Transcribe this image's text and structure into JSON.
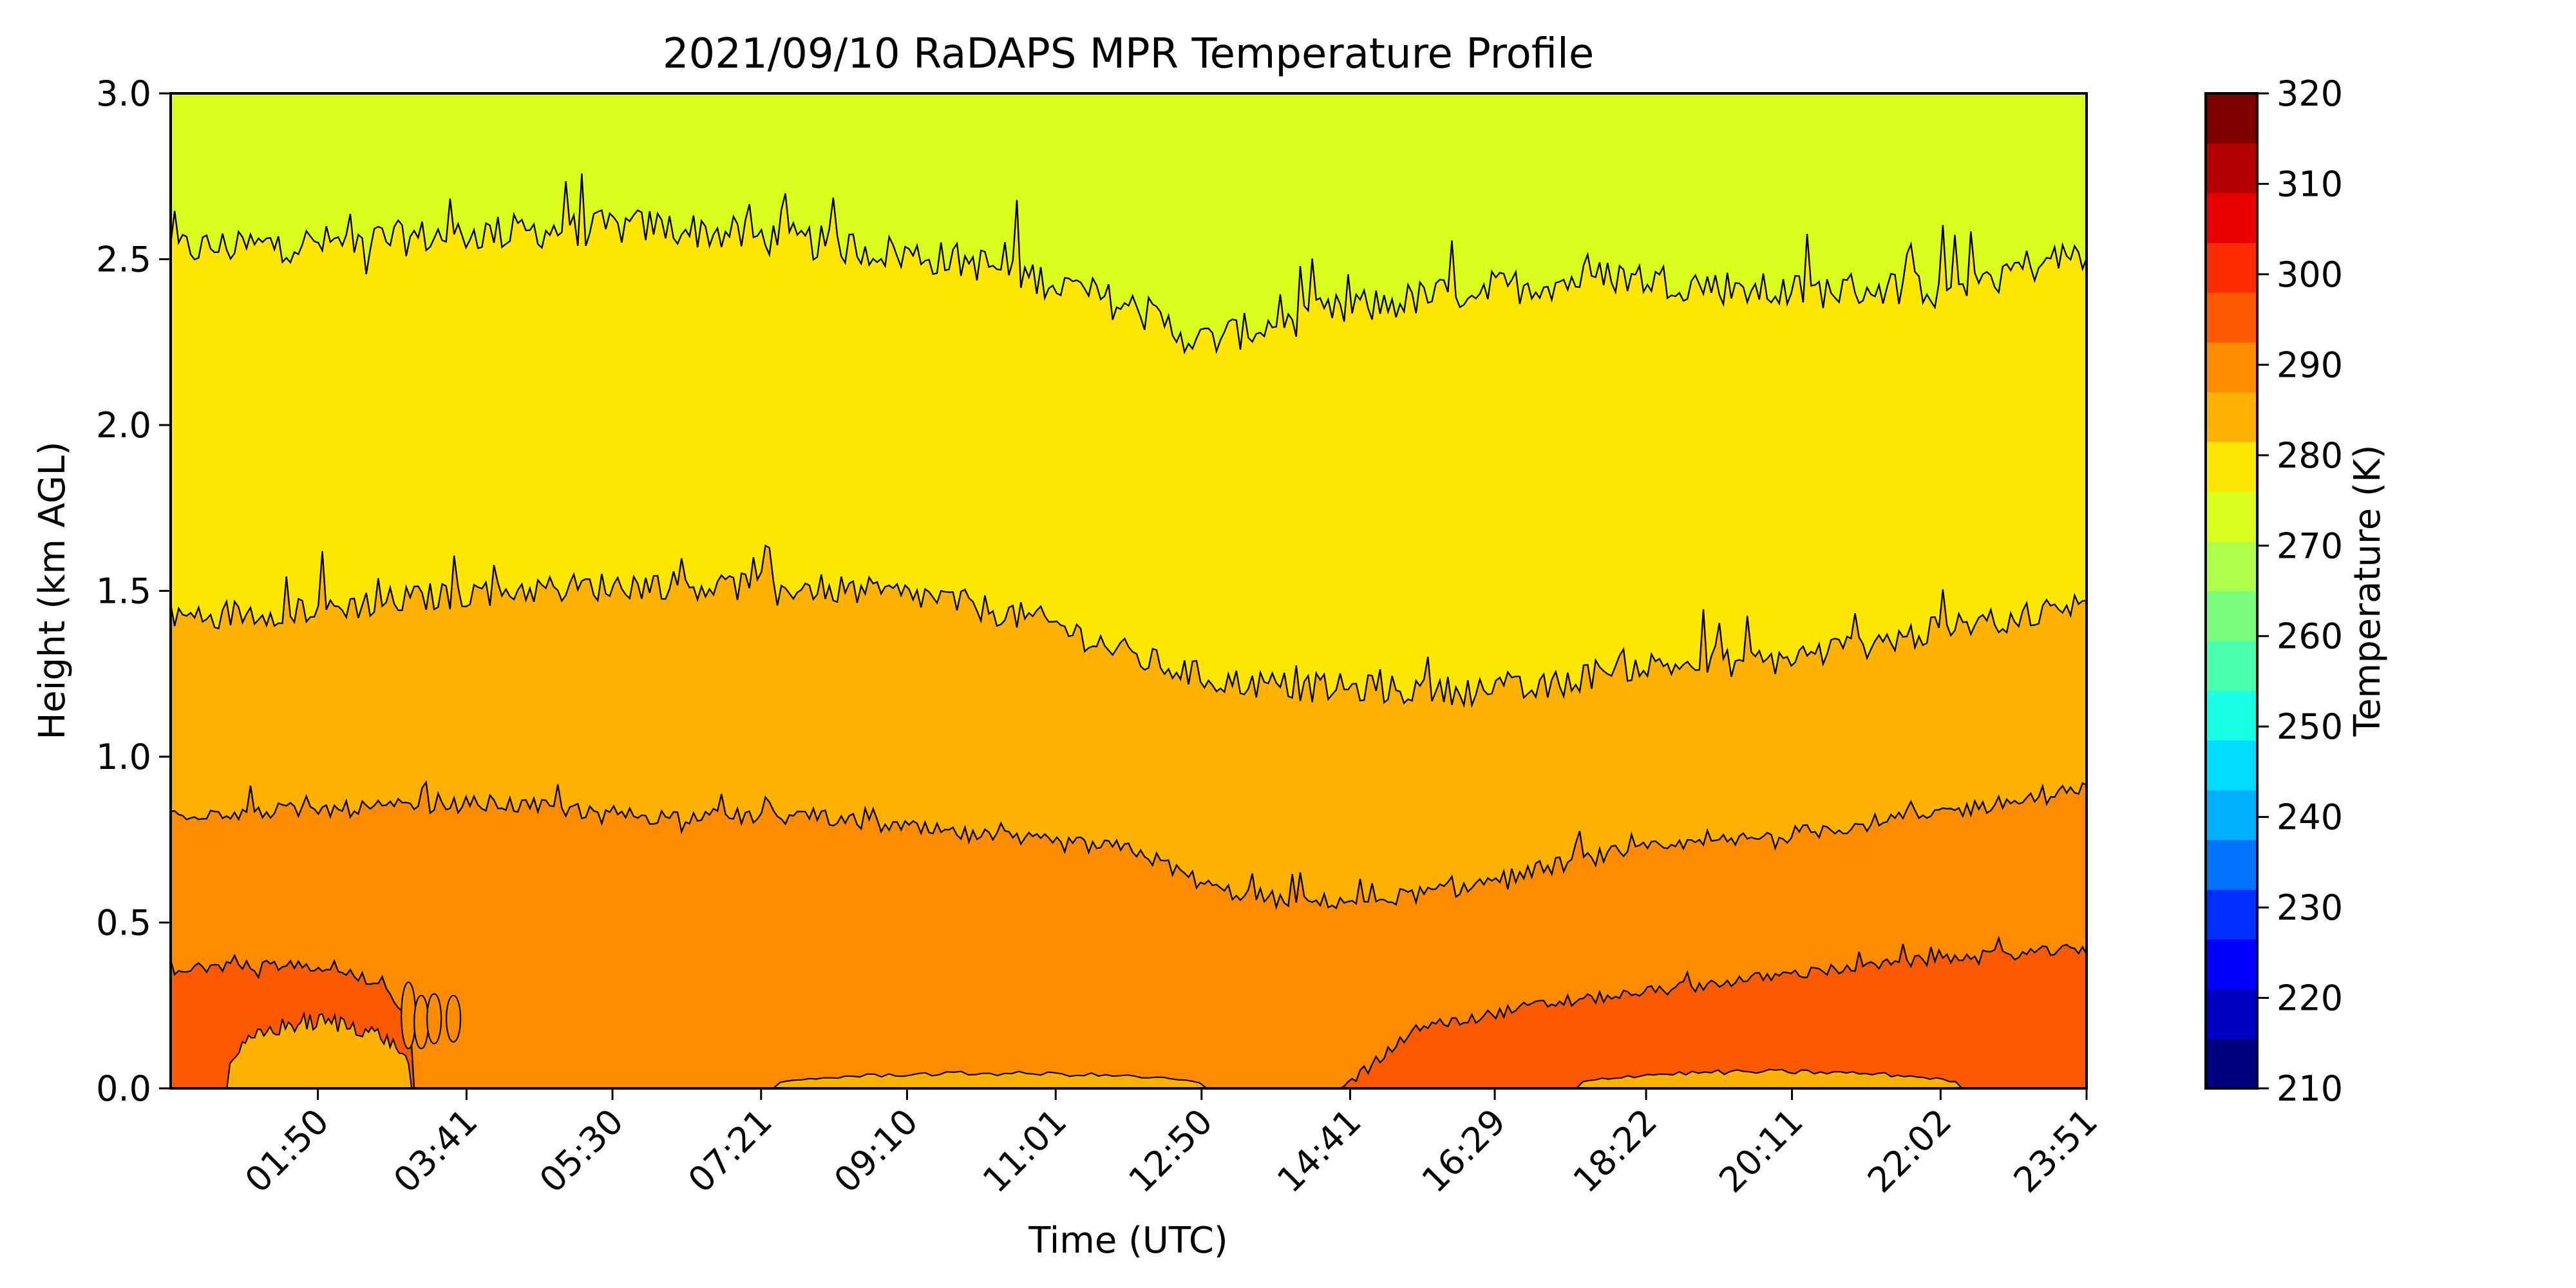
{
  "chart_data": {
    "type": "heatmap",
    "subtype": "filled-contour",
    "title": "2021/09/10 RaDAPS MPR Temperature Profile",
    "xlabel": "Time (UTC)",
    "ylabel": "Height (km AGL)",
    "colorbar_label": "Temperature (K)",
    "x_range_hours": [
      0.0,
      23.85
    ],
    "x_ticks": [
      {
        "hour": 1.833,
        "label": "01:50"
      },
      {
        "hour": 3.683,
        "label": "03:41"
      },
      {
        "hour": 5.5,
        "label": "05:30"
      },
      {
        "hour": 7.35,
        "label": "07:21"
      },
      {
        "hour": 9.167,
        "label": "09:10"
      },
      {
        "hour": 11.017,
        "label": "11:01"
      },
      {
        "hour": 12.833,
        "label": "12:50"
      },
      {
        "hour": 14.683,
        "label": "14:41"
      },
      {
        "hour": 16.483,
        "label": "16:29"
      },
      {
        "hour": 18.367,
        "label": "18:22"
      },
      {
        "hour": 20.183,
        "label": "20:11"
      },
      {
        "hour": 22.033,
        "label": "22:02"
      },
      {
        "hour": 23.85,
        "label": "23:51"
      }
    ],
    "ylim": [
      0.0,
      3.0
    ],
    "y_ticks": [
      "0.0",
      "0.5",
      "1.0",
      "1.5",
      "2.0",
      "2.5",
      "3.0"
    ],
    "colorbar_range": [
      210,
      320
    ],
    "colorbar_ticks": [
      "210",
      "220",
      "230",
      "240",
      "250",
      "260",
      "270",
      "280",
      "290",
      "300",
      "310",
      "320"
    ],
    "colorbar_colors": [
      "#000080",
      "#0000c4",
      "#0000ff",
      "#0030ff",
      "#0074ff",
      "#00b0ff",
      "#00dcfe",
      "#1affe4",
      "#49ffad",
      "#7aff7d",
      "#adff4a",
      "#daff1e",
      "#ffe600",
      "#ffb100",
      "#ff8c00",
      "#ff5900",
      "#ff2b00",
      "#e60000",
      "#b60000",
      "#800000"
    ],
    "contour_levels_K": [
      280,
      285,
      290,
      295,
      300,
      305
    ],
    "band_fill_colors": {
      "275-280": "#daff1e",
      "280-285": "#ffe600",
      "285-290": "#ffb100",
      "290-295": "#ff8c00",
      "295-300": "#ff5900",
      "300-305": "#ffb100"
    },
    "isotherms": [
      {
        "level_K": 280,
        "time_hours": [
          0,
          2,
          4,
          6,
          8,
          10,
          11,
          12,
          12.8,
          14,
          16,
          18,
          20,
          22,
          23.85
        ],
        "height_km": [
          2.53,
          2.55,
          2.58,
          2.6,
          2.55,
          2.49,
          2.43,
          2.35,
          2.25,
          2.32,
          2.4,
          2.45,
          2.4,
          2.42,
          2.52
        ]
      },
      {
        "level_K": 285,
        "time_hours": [
          0,
          2,
          4,
          6,
          8,
          9.5,
          11,
          12,
          13,
          14,
          15.5,
          17,
          18,
          20,
          22,
          23.85
        ],
        "height_km": [
          1.42,
          1.45,
          1.5,
          1.52,
          1.51,
          1.48,
          1.4,
          1.3,
          1.23,
          1.21,
          1.2,
          1.2,
          1.27,
          1.29,
          1.38,
          1.46
        ]
      },
      {
        "level_K": 290,
        "time_hours": [
          0,
          2,
          4,
          6,
          8,
          9,
          10,
          11,
          12,
          13,
          14,
          15,
          16,
          17,
          18,
          20,
          22,
          23.85
        ],
        "height_km": [
          0.83,
          0.84,
          0.86,
          0.82,
          0.82,
          0.79,
          0.76,
          0.74,
          0.72,
          0.6,
          0.56,
          0.57,
          0.6,
          0.66,
          0.71,
          0.76,
          0.83,
          0.9
        ]
      },
      {
        "level_K": 295,
        "time_hours": [
          0,
          1,
          2,
          2.7,
          3.0,
          14.6,
          15.5,
          17,
          18,
          20,
          22,
          23.85
        ],
        "height_km": [
          0.36,
          0.37,
          0.37,
          0.3,
          0.2,
          0.0,
          0.18,
          0.25,
          0.28,
          0.34,
          0.39,
          0.42
        ]
      }
    ]
  }
}
